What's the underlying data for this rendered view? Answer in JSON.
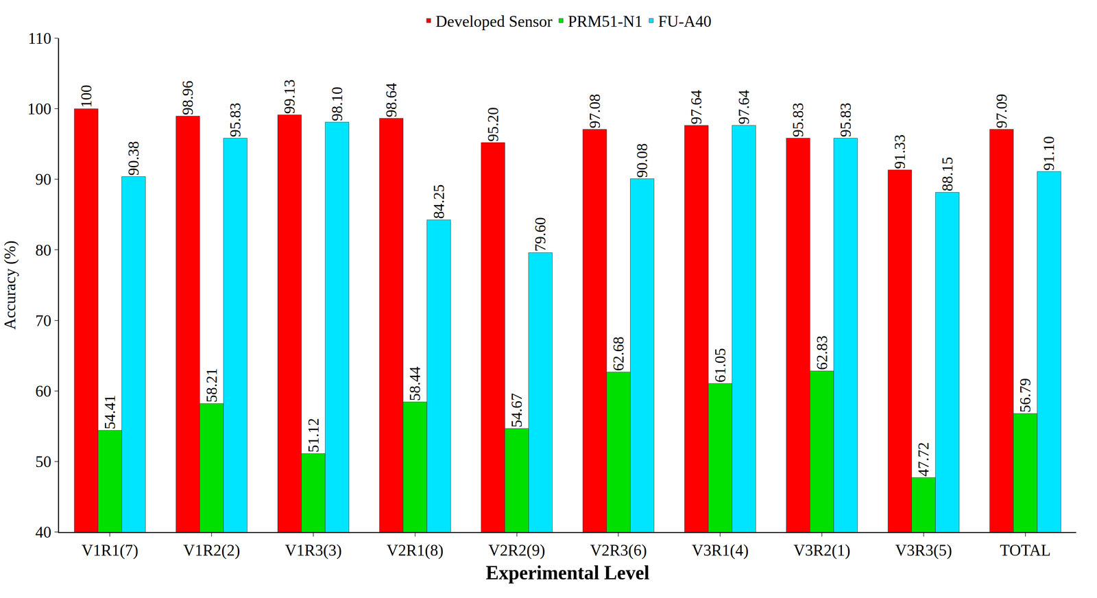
{
  "chart_data": {
    "type": "bar",
    "x_label": "Experimental Level",
    "y_label": "Accuracy (%)",
    "categories": [
      "V1R1(7)",
      "V1R2(2)",
      "V1R3(3)",
      "V2R1(8)",
      "V2R2(9)",
      "V2R3(6)",
      "V3R1(4)",
      "V3R2(1)",
      "V3R3(5)",
      "TOTAL"
    ],
    "series": [
      {
        "name": "Developed Sensor",
        "color": "#ff0000",
        "values": [
          100,
          98.96,
          99.13,
          98.64,
          95.2,
          97.08,
          97.64,
          95.83,
          91.33,
          97.09
        ],
        "value_labels": [
          "100",
          "98.96",
          "99.13",
          "98.64",
          "95.20",
          "97.08",
          "97.64",
          "95.83",
          "91.33",
          "97.09"
        ]
      },
      {
        "name": "PRM51-N1",
        "color": "#00e000",
        "values": [
          54.41,
          58.21,
          51.12,
          58.44,
          54.67,
          62.68,
          61.05,
          62.83,
          47.72,
          56.79
        ],
        "value_labels": [
          "54.41",
          "58.21",
          "51.12",
          "58.44",
          "54.67",
          "62.68",
          "61.05",
          "62.83",
          "47.72",
          "56.79"
        ]
      },
      {
        "name": "FU-A40",
        "color": "#00e5ff",
        "values": [
          90.38,
          95.83,
          98.1,
          84.25,
          79.6,
          90.08,
          97.64,
          95.83,
          88.15,
          91.1
        ],
        "value_labels": [
          "90.38",
          "95.83",
          "98.10",
          "84.25",
          "79.60",
          "90.08",
          "97.64",
          "95.83",
          "88.15",
          "91.10"
        ]
      }
    ],
    "ylim": [
      40,
      110
    ],
    "yticks": [
      40,
      50,
      60,
      70,
      80,
      90,
      100,
      110
    ],
    "grid": false,
    "legend": "top",
    "data_labels": true
  }
}
